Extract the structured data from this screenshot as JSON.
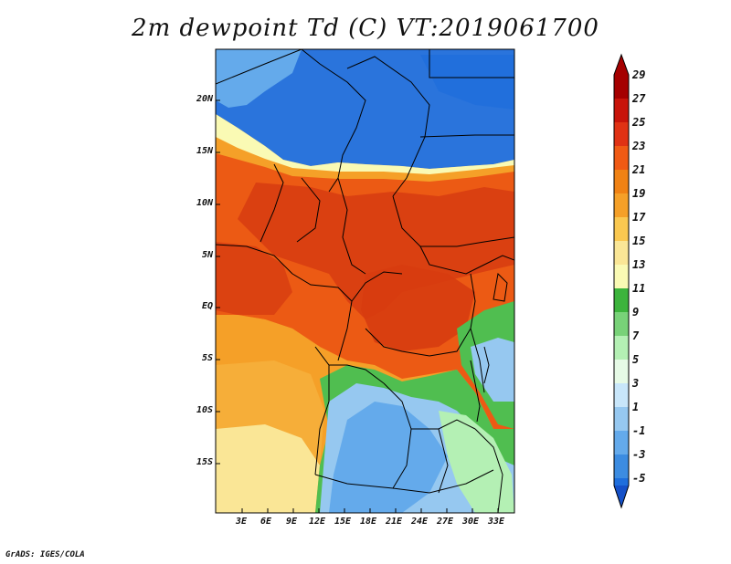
{
  "title": "2m dewpoint Td (C) VT:2019061700",
  "credit": "GrADS: IGES/COLA",
  "lat_labels": [
    "20N",
    "15N",
    "10N",
    "5N",
    "EQ",
    "5S",
    "10S",
    "15S"
  ],
  "lon_labels": [
    "3E",
    "6E",
    "9E",
    "12E",
    "15E",
    "18E",
    "21E",
    "24E",
    "27E",
    "30E",
    "33E"
  ],
  "colorbar": {
    "labels": [
      "29",
      "27",
      "25",
      "23",
      "21",
      "19",
      "17",
      "15",
      "13",
      "11",
      "9",
      "7",
      "5",
      "3",
      "1",
      "-1",
      "-3",
      "-5"
    ],
    "colors": [
      "#a50000",
      "#c8140a",
      "#e03214",
      "#f05a14",
      "#f08214",
      "#f5a028",
      "#fac850",
      "#fae696",
      "#fafab4",
      "#3cb43c",
      "#78d278",
      "#b4f0b4",
      "#e6fae6",
      "#c8e6fa",
      "#96c8f0",
      "#64aaeb",
      "#3c8ce1",
      "#1e6edc",
      "#1450c8"
    ]
  },
  "legend_colors": {
    "deep_red": "#d73c10",
    "red_orange": "#ec5a14",
    "orange": "#f5a028",
    "pale_yellow": "#fae696",
    "green": "#50be50",
    "light_green": "#b4f0b4",
    "light_blue": "#96c8f0",
    "blue": "#3c8ce1",
    "dark_blue": "#2a74dc"
  }
}
